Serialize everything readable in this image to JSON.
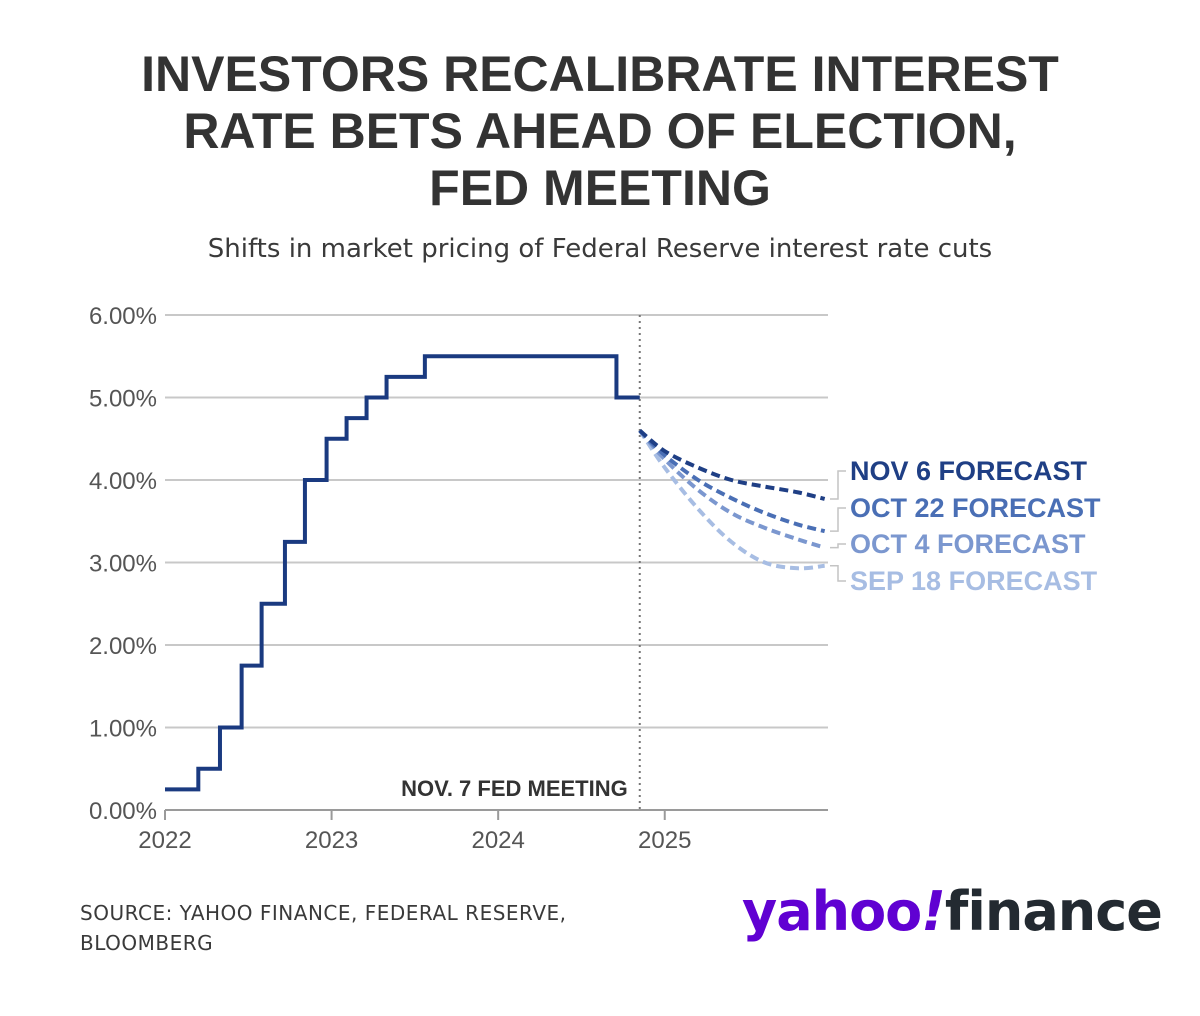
{
  "title_lines": [
    "INVESTORS RECALIBRATE INTEREST",
    "RATE BETS AHEAD OF ELECTION,",
    "FED MEETING"
  ],
  "subtitle": "Shifts in market pricing of Federal Reserve interest rate cuts",
  "source_lines": [
    "SOURCE: YAHOO FINANCE, FEDERAL RESERVE,",
    "BLOOMBERG"
  ],
  "logo": {
    "part1": "yahoo",
    "part2": "!",
    "part3": "finance"
  },
  "colors": {
    "actual": "#1a3a80",
    "nov6": "#1f3f85",
    "oct22": "#4a6fb5",
    "oct4": "#7b97cf",
    "sep18": "#a7bde3",
    "grid": "#c8c8c8",
    "text": "#333333",
    "brand": "#6001d2"
  },
  "chart_data": {
    "type": "line",
    "title": "INVESTORS RECALIBRATE INTEREST RATE BETS AHEAD OF ELECTION, FED MEETING",
    "subtitle": "Shifts in market pricing of Federal Reserve interest rate cuts",
    "xlabel": "",
    "ylabel": "",
    "xlim": [
      2022.0,
      2025.98
    ],
    "ylim": [
      0,
      6
    ],
    "x_ticks": [
      2022,
      2023,
      2024,
      2025
    ],
    "x_tick_labels": [
      "2022",
      "2023",
      "2024",
      "2025"
    ],
    "y_ticks": [
      0,
      1,
      2,
      3,
      4,
      5,
      6
    ],
    "y_tick_labels": [
      "0.00%",
      "1.00%",
      "2.00%",
      "3.00%",
      "4.00%",
      "5.00%",
      "6.00%"
    ],
    "grid": true,
    "annotation": {
      "x": 2024.85,
      "text": "NOV. 7 FED MEETING"
    },
    "series": [
      {
        "id": "actual",
        "style": "step",
        "x": [
          2022.0,
          2022.2,
          2022.33,
          2022.46,
          2022.58,
          2022.72,
          2022.84,
          2022.97,
          2023.09,
          2023.21,
          2023.33,
          2023.56,
          2024.71,
          2024.85
        ],
        "values": [
          0.25,
          0.5,
          1.0,
          1.75,
          2.5,
          3.25,
          4.0,
          4.5,
          4.75,
          5.0,
          5.25,
          5.5,
          5.0,
          5.0
        ]
      },
      {
        "id": "nov6",
        "name": "NOV 6 FORECAST",
        "style": "dashed",
        "x": [
          2024.85,
          2025.0,
          2025.2,
          2025.4,
          2025.6,
          2025.8,
          2025.96
        ],
        "values": [
          4.6,
          4.35,
          4.15,
          4.0,
          3.92,
          3.85,
          3.77
        ]
      },
      {
        "id": "oct22",
        "name": "OCT 22 FORECAST",
        "style": "dashed",
        "x": [
          2024.85,
          2025.0,
          2025.2,
          2025.4,
          2025.6,
          2025.8,
          2025.96
        ],
        "values": [
          4.6,
          4.3,
          4.0,
          3.78,
          3.6,
          3.46,
          3.38
        ]
      },
      {
        "id": "oct4",
        "name": "OCT 4 FORECAST",
        "style": "dashed",
        "x": [
          2024.85,
          2025.0,
          2025.2,
          2025.4,
          2025.6,
          2025.8,
          2025.96
        ],
        "values": [
          4.6,
          4.25,
          3.88,
          3.6,
          3.42,
          3.28,
          3.18
        ]
      },
      {
        "id": "sep18",
        "name": "SEP 18 FORECAST",
        "style": "dashed",
        "x": [
          2024.85,
          2025.0,
          2025.2,
          2025.4,
          2025.6,
          2025.8,
          2025.96
        ],
        "values": [
          4.6,
          4.15,
          3.65,
          3.25,
          3.0,
          2.93,
          2.96
        ]
      }
    ]
  }
}
